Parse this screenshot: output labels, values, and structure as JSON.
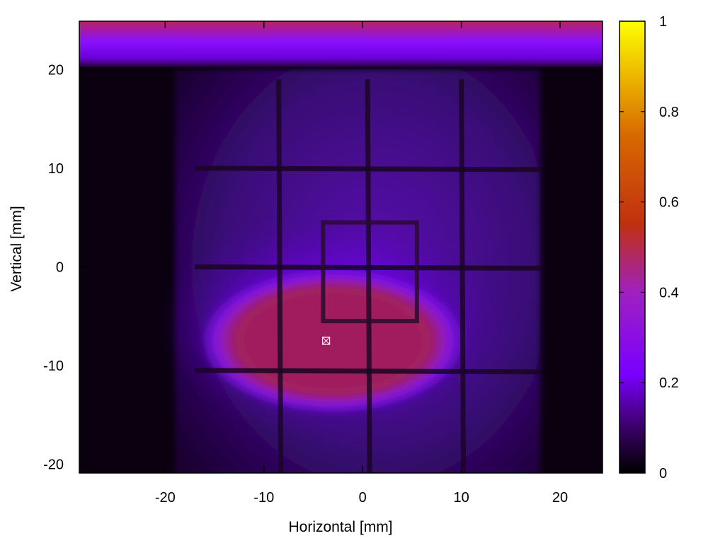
{
  "chart_data": {
    "type": "heatmap",
    "title": "",
    "xlabel": "Horizontal [mm]",
    "ylabel": "Vertical [mm]",
    "xlim": [
      -28.7,
      24.3
    ],
    "ylim": [
      -20.9,
      24.9
    ],
    "x_ticks": [
      -20,
      -10,
      0,
      10,
      20
    ],
    "y_ticks": [
      -20,
      -10,
      0,
      10,
      20
    ],
    "colorbar": {
      "range": [
        0,
        1
      ],
      "ticks": [
        0,
        0.2,
        0.4,
        0.6,
        0.8,
        1
      ],
      "tick_labels": [
        "0",
        "0.2",
        "0.4",
        "0.6",
        "0.8",
        "1"
      ],
      "colormap": [
        "#000000",
        "#3a0066",
        "#7a00ff",
        "#a020c0",
        "#c03010",
        "#d86a00",
        "#ffff00"
      ]
    },
    "features": {
      "top_band": {
        "y_range": [
          20.3,
          24.9
        ],
        "level": 0.4
      },
      "frame": {
        "x_range": [
          -19,
          18
        ],
        "y_range": [
          -20.9,
          20
        ],
        "level": 0.15
      },
      "hot_spot": {
        "center": [
          -3,
          -7.5
        ],
        "radius": [
          13,
          6.5
        ],
        "level": 0.45
      },
      "grid_lines_x": [
        -8.5,
        0.5,
        10
      ],
      "grid_lines_y": [
        10,
        0,
        -10.5
      ],
      "inner_box": {
        "x_range": [
          -4,
          5.5
        ],
        "y_range": [
          -5.5,
          4.5
        ]
      },
      "marker": {
        "x": -3.7,
        "y": -7.5
      }
    }
  }
}
